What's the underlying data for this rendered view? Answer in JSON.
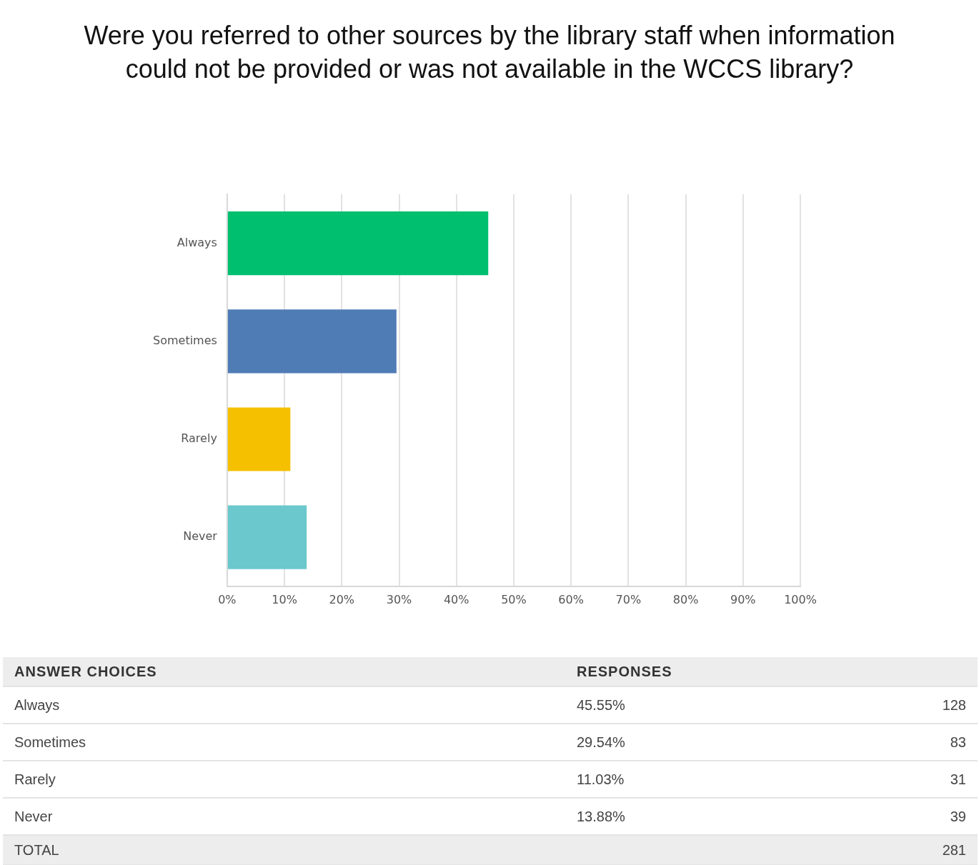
{
  "chart_data": {
    "type": "bar",
    "orientation": "horizontal",
    "title": "Were you referred to other sources by the library staff when information could not be provided or was not available in the WCCS library?",
    "categories": [
      "Always",
      "Sometimes",
      "Rarely",
      "Never"
    ],
    "values": [
      45.55,
      29.54,
      11.03,
      13.88
    ],
    "colors": [
      "#00bf6f",
      "#507cb6",
      "#f5c000",
      "#6bc8cd"
    ],
    "xlim": [
      0,
      100
    ],
    "xticks": [
      {
        "value": 0,
        "label": "0%"
      },
      {
        "value": 10,
        "label": "10%"
      },
      {
        "value": 20,
        "label": "20%"
      },
      {
        "value": 30,
        "label": "30%"
      },
      {
        "value": 40,
        "label": "40%"
      },
      {
        "value": 50,
        "label": "50%"
      },
      {
        "value": 60,
        "label": "60%"
      },
      {
        "value": 70,
        "label": "70%"
      },
      {
        "value": 80,
        "label": "80%"
      },
      {
        "value": 90,
        "label": "90%"
      },
      {
        "value": 100,
        "label": "100%"
      }
    ],
    "grid": "x",
    "annotations": [
      "ANSWER CHOICES",
      "RESPONSES",
      "45.55%",
      "128",
      "29.54%",
      "83",
      "11.03%",
      "31",
      "13.88%",
      "39",
      "TOTAL",
      "281"
    ]
  }
}
